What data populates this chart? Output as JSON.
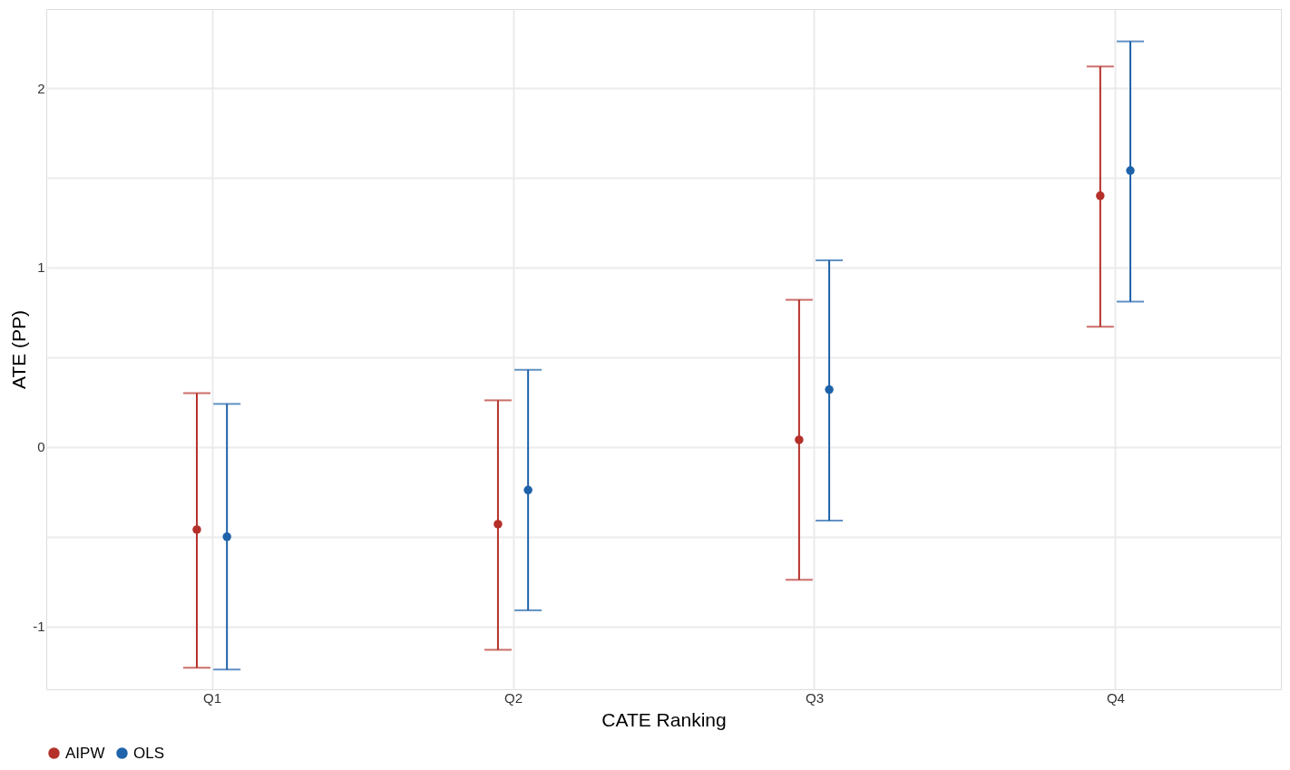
{
  "chart_data": {
    "type": "scatter",
    "xlabel": "CATE Ranking",
    "ylabel": "ATE (PP)",
    "categories": [
      "Q1",
      "Q2",
      "Q3",
      "Q4"
    ],
    "series": [
      {
        "name": "AIPW",
        "color": "#b5302a",
        "values": [
          -0.46,
          -0.43,
          0.04,
          1.4
        ],
        "errors": [
          [
            -1.23,
            0.3
          ],
          [
            -1.13,
            0.26
          ],
          [
            -0.74,
            0.82
          ],
          [
            0.67,
            2.12
          ]
        ]
      },
      {
        "name": "OLS",
        "color": "#1f63aa",
        "values": [
          -0.5,
          -0.24,
          0.32,
          1.54
        ],
        "errors": [
          [
            -1.24,
            0.24
          ],
          [
            -0.91,
            0.43
          ],
          [
            -0.41,
            1.04
          ],
          [
            0.81,
            2.26
          ]
        ]
      }
    ],
    "ylim": [
      -1.35,
      2.44
    ],
    "yticks": [
      -1,
      {
        "value": -0.5,
        "label": null
      },
      0,
      {
        "value": 0.5,
        "label": null
      },
      1,
      {
        "value": 1.5,
        "label": null
      },
      2
    ],
    "grid": true,
    "legend": "bottom",
    "marker": "circle"
  }
}
